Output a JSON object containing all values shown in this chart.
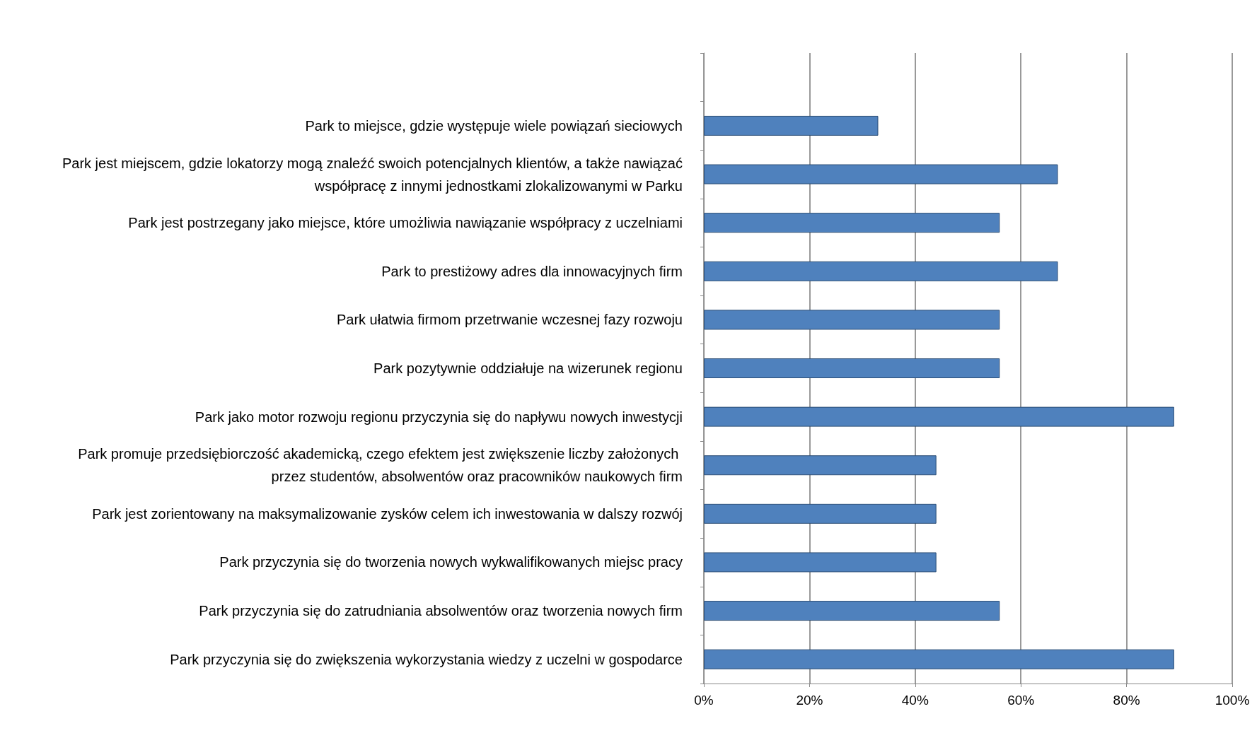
{
  "chart_data": {
    "type": "bar",
    "orientation": "horizontal",
    "categories": [
      null,
      "Park to miejsce, gdzie występuje wiele powiązań sieciowych",
      "Park jest miejscem, gdzie lokatorzy mogą znaleźć swoich potencjalnych klientów, a także nawiązać współpracę z innymi jednostkami zlokalizowanymi w Parku",
      "Park jest postrzegany jako miejsce, które umożliwia nawiązanie współpracy z uczelniami",
      "Park to prestiżowy adres dla innowacyjnych firm",
      "Park ułatwia firmom przetrwanie wczesnej fazy rozwoju",
      "Park pozytywnie oddziałuje na wizerunek regionu",
      "Park jako motor rozwoju regionu przyczynia się do napływu nowych inwestycji",
      "Park promuje przedsiębiorczość akademicką, czego efektem jest zwiększenie liczby założonych przez studentów, absolwentów oraz pracowników naukowych firm",
      "Park jest zorientowany na maksymalizowanie zysków celem ich inwestowania w dalszy rozwój",
      "Park przyczynia się do tworzenia nowych wykwalifikowanych miejsc pracy",
      "Park przyczynia się do zatrudniania absolwentów oraz tworzenia nowych firm",
      "Park przyczynia się do zwiększenia wykorzystania wiedzy z uczelni w gospodarce"
    ],
    "values": [
      null,
      33,
      67,
      56,
      67,
      56,
      56,
      89,
      44,
      44,
      44,
      56,
      89
    ],
    "color": "#4f81bd",
    "xlim": [
      0,
      100
    ],
    "xticks": [
      {
        "value": 0,
        "label": "0%"
      },
      {
        "value": 20,
        "label": "20%"
      },
      {
        "value": 40,
        "label": "40%"
      },
      {
        "value": 60,
        "label": "60%"
      },
      {
        "value": 80,
        "label": "80%"
      },
      {
        "value": 100,
        "label": "100%"
      }
    ],
    "grid": "x"
  }
}
